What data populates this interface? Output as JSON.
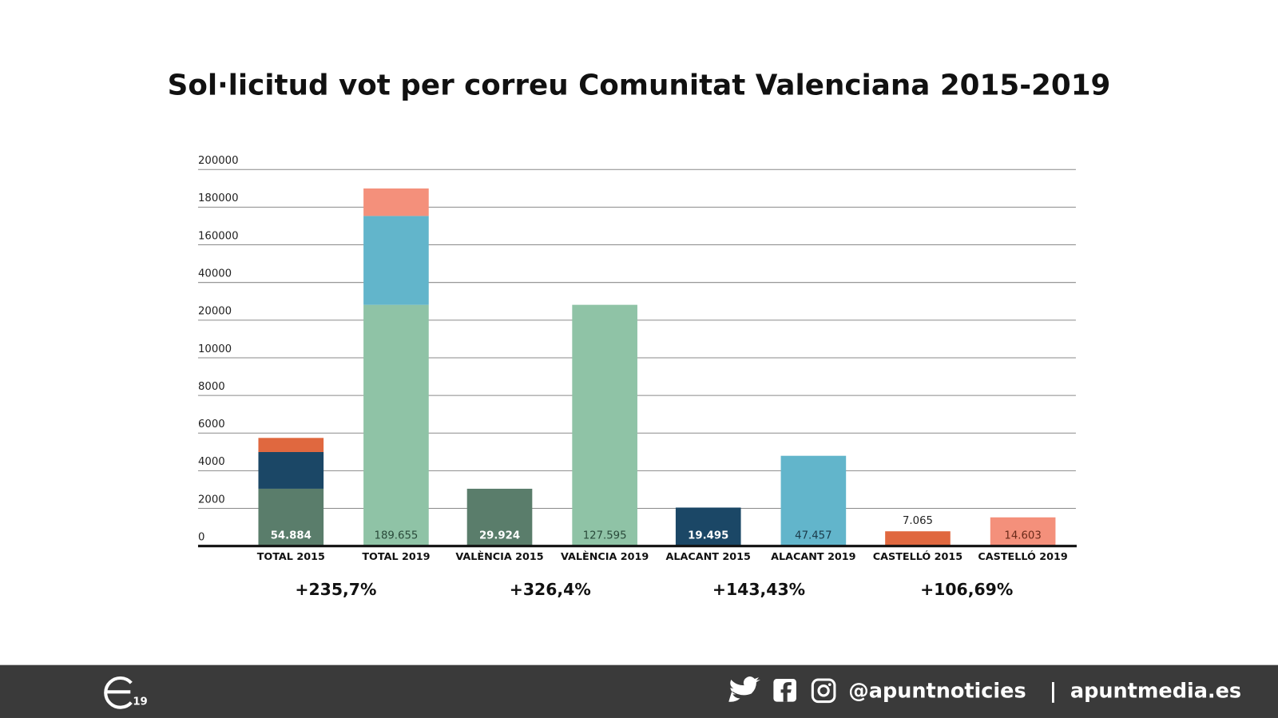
{
  "chart_data": {
    "type": "bar",
    "stacked": true,
    "title": "Sol·licitud vot per correu Comunitat Valenciana 2015-2019",
    "xlabel": "",
    "ylabel": "",
    "ylim": [
      0,
      200000
    ],
    "grid": true,
    "y_ticks": [
      "0",
      "2000",
      "4000",
      "6000",
      "8000",
      "10000",
      "20000",
      "40000",
      "160000",
      "180000",
      "200000"
    ],
    "y_tick_values": [
      0,
      2000,
      4000,
      6000,
      8000,
      10000,
      20000,
      40000,
      160000,
      180000,
      200000
    ],
    "categories": [
      "TOTAL 2015",
      "TOTAL 2019",
      "VALÈNCIA 2015",
      "VALÈNCIA 2019",
      "ALACANT 2015",
      "ALACANT 2019",
      "CASTELLÓ 2015",
      "CASTELLÓ 2019"
    ],
    "bars": [
      {
        "label": "54.884",
        "label_color": "#ffffff",
        "label_bold": true,
        "segments": [
          {
            "to": 3000,
            "color": "#5a7d6b"
          },
          {
            "to": 4950,
            "color": "#1b4766"
          },
          {
            "to": 5700,
            "color": "#e0683f"
          }
        ]
      },
      {
        "label": "189.655",
        "label_color": "#2a4a3a",
        "label_bold": false,
        "segments": [
          {
            "to": 27700,
            "color": "#8fc3a6"
          },
          {
            "to": 174900,
            "color": "#62b5cb"
          },
          {
            "to": 189500,
            "color": "#f4907b"
          }
        ]
      },
      {
        "label": "29.924",
        "label_color": "#ffffff",
        "label_bold": true,
        "segments": [
          {
            "to": 3000,
            "color": "#5a7d6b"
          }
        ]
      },
      {
        "label": "127.595",
        "label_color": "#2a4a3a",
        "label_bold": false,
        "segments": [
          {
            "to": 27700,
            "color": "#8fc3a6"
          }
        ]
      },
      {
        "label": "19.495",
        "label_color": "#ffffff",
        "label_bold": true,
        "segments": [
          {
            "to": 2000,
            "color": "#1b4766"
          }
        ]
      },
      {
        "label": "47.457",
        "label_color": "#1b3a4a",
        "label_bold": false,
        "segments": [
          {
            "to": 4750,
            "color": "#62b5cb"
          }
        ]
      },
      {
        "label": "7.065",
        "label_color": "#222222",
        "label_bold": false,
        "label_above": true,
        "segments": [
          {
            "to": 740,
            "color": "#e0683f"
          }
        ]
      },
      {
        "label": "14.603",
        "label_color": "#6a2a1a",
        "label_bold": false,
        "segments": [
          {
            "to": 1480,
            "color": "#f4907b"
          }
        ]
      }
    ],
    "annotations": [
      "+235,7%",
      "+326,4%",
      "+143,43%",
      "+106,69%"
    ]
  },
  "footer": {
    "logo_text": "19",
    "handle": "@apuntnoticies",
    "separator": "|",
    "website": "apuntmedia.es",
    "icons": [
      "twitter-icon",
      "facebook-icon",
      "instagram-icon"
    ],
    "background": "#3a3a3a"
  }
}
